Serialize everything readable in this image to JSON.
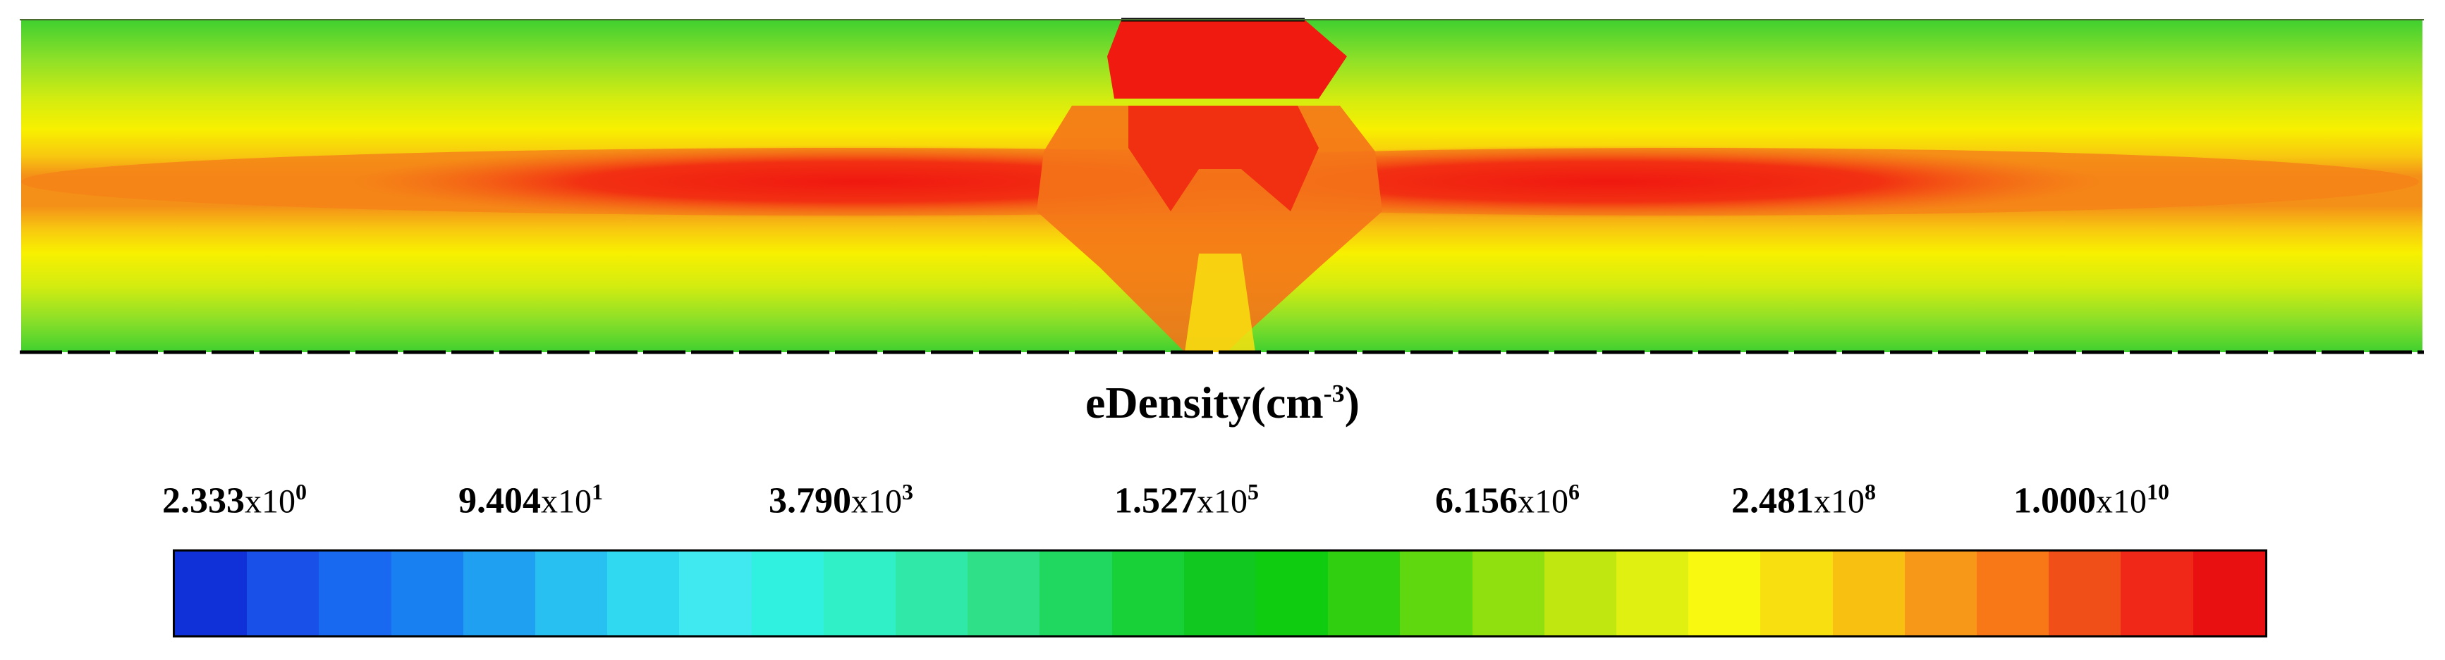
{
  "chart_data": {
    "type": "heatmap",
    "title": "eDensity(cm",
    "title_sup": "-3",
    "title_close": ")",
    "colorbar": {
      "tick_labels": [
        {
          "mant": "2.333",
          "x": "x10",
          "exp": "0"
        },
        {
          "mant": "9.404",
          "x": "x10",
          "exp": "1"
        },
        {
          "mant": "3.790",
          "x": "x10",
          "exp": "3"
        },
        {
          "mant": "1.527",
          "x": "x10",
          "exp": "5"
        },
        {
          "mant": "6.156",
          "x": "x10",
          "exp": "6"
        },
        {
          "mant": "2.481",
          "x": "x10",
          "exp": "8"
        },
        {
          "mant": "1.000",
          "x": "x10",
          "exp": "10"
        }
      ],
      "tick_values": [
        2.333,
        94.04,
        3790,
        152700,
        6156000,
        248100000,
        10000000000
      ],
      "scale": "log",
      "range": [
        2.333,
        10000000000
      ],
      "colors": [
        "#1030d8",
        "#1850e8",
        "#1868f0",
        "#1880f0",
        "#20a0f0",
        "#28c0f0",
        "#30d8f0",
        "#40e8f0",
        "#30f0e0",
        "#30f0c8",
        "#30e8a8",
        "#30e088",
        "#20d860",
        "#18d038",
        "#10c820",
        "#10cc10",
        "#30d010",
        "#60d810",
        "#90e010",
        "#c0e810",
        "#e0f010",
        "#f8f810",
        "#f8e010",
        "#f8c010",
        "#f89818",
        "#f87818",
        "#f05018",
        "#f02818",
        "#e81010"
      ]
    },
    "field": {
      "description_levels": [
        "green",
        "light-green",
        "yellow",
        "orange",
        "red"
      ],
      "colors": {
        "green": "#44d030",
        "lightgreen": "#9be020",
        "yellow": "#f2f000",
        "orange": "#f69018",
        "red": "#f02010"
      }
    }
  }
}
